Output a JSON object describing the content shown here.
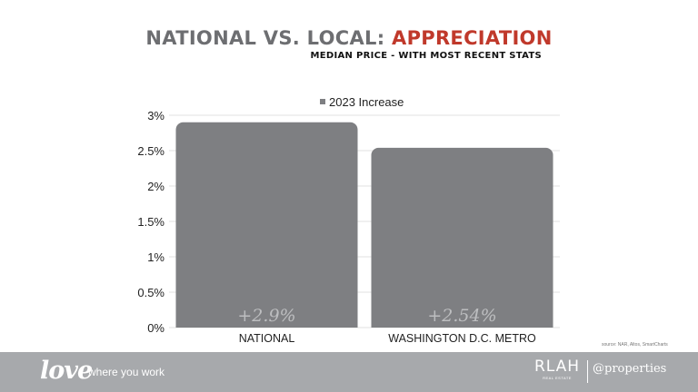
{
  "header": {
    "title_prefix": "NATIONAL VS. LOCAL: ",
    "title_accent": "APPRECIATION",
    "subtitle": "MEDIAN PRICE - WITH MOST RECENT STATS"
  },
  "chart_data": {
    "type": "bar",
    "categories": [
      "NATIONAL",
      "WASHINGTON D.C. METRO"
    ],
    "series": [
      {
        "name": "2023 Increase",
        "values": [
          2.9,
          2.54
        ],
        "color": "#7e7f82"
      }
    ],
    "data_labels": [
      "+2.9%",
      "+2.54%"
    ],
    "y_ticks": [
      "0%",
      "0.5%",
      "1%",
      "1.5%",
      "2%",
      "2.5%",
      "3%"
    ],
    "ylim": [
      0,
      3
    ],
    "legend_position": "top",
    "grid": true
  },
  "source": "source: NAR, Altos, SmartCharts",
  "footer": {
    "logo_love": "love",
    "tagline": "where you work",
    "logo_rlah": "RLAH",
    "logo_rlah_sub": "REAL ESTATE",
    "logo_properties": "@properties"
  },
  "colors": {
    "accent": "#c0392b",
    "bar": "#7e7f82",
    "footer_bg": "#a7a9ac",
    "title_gray": "#6d6e71"
  }
}
